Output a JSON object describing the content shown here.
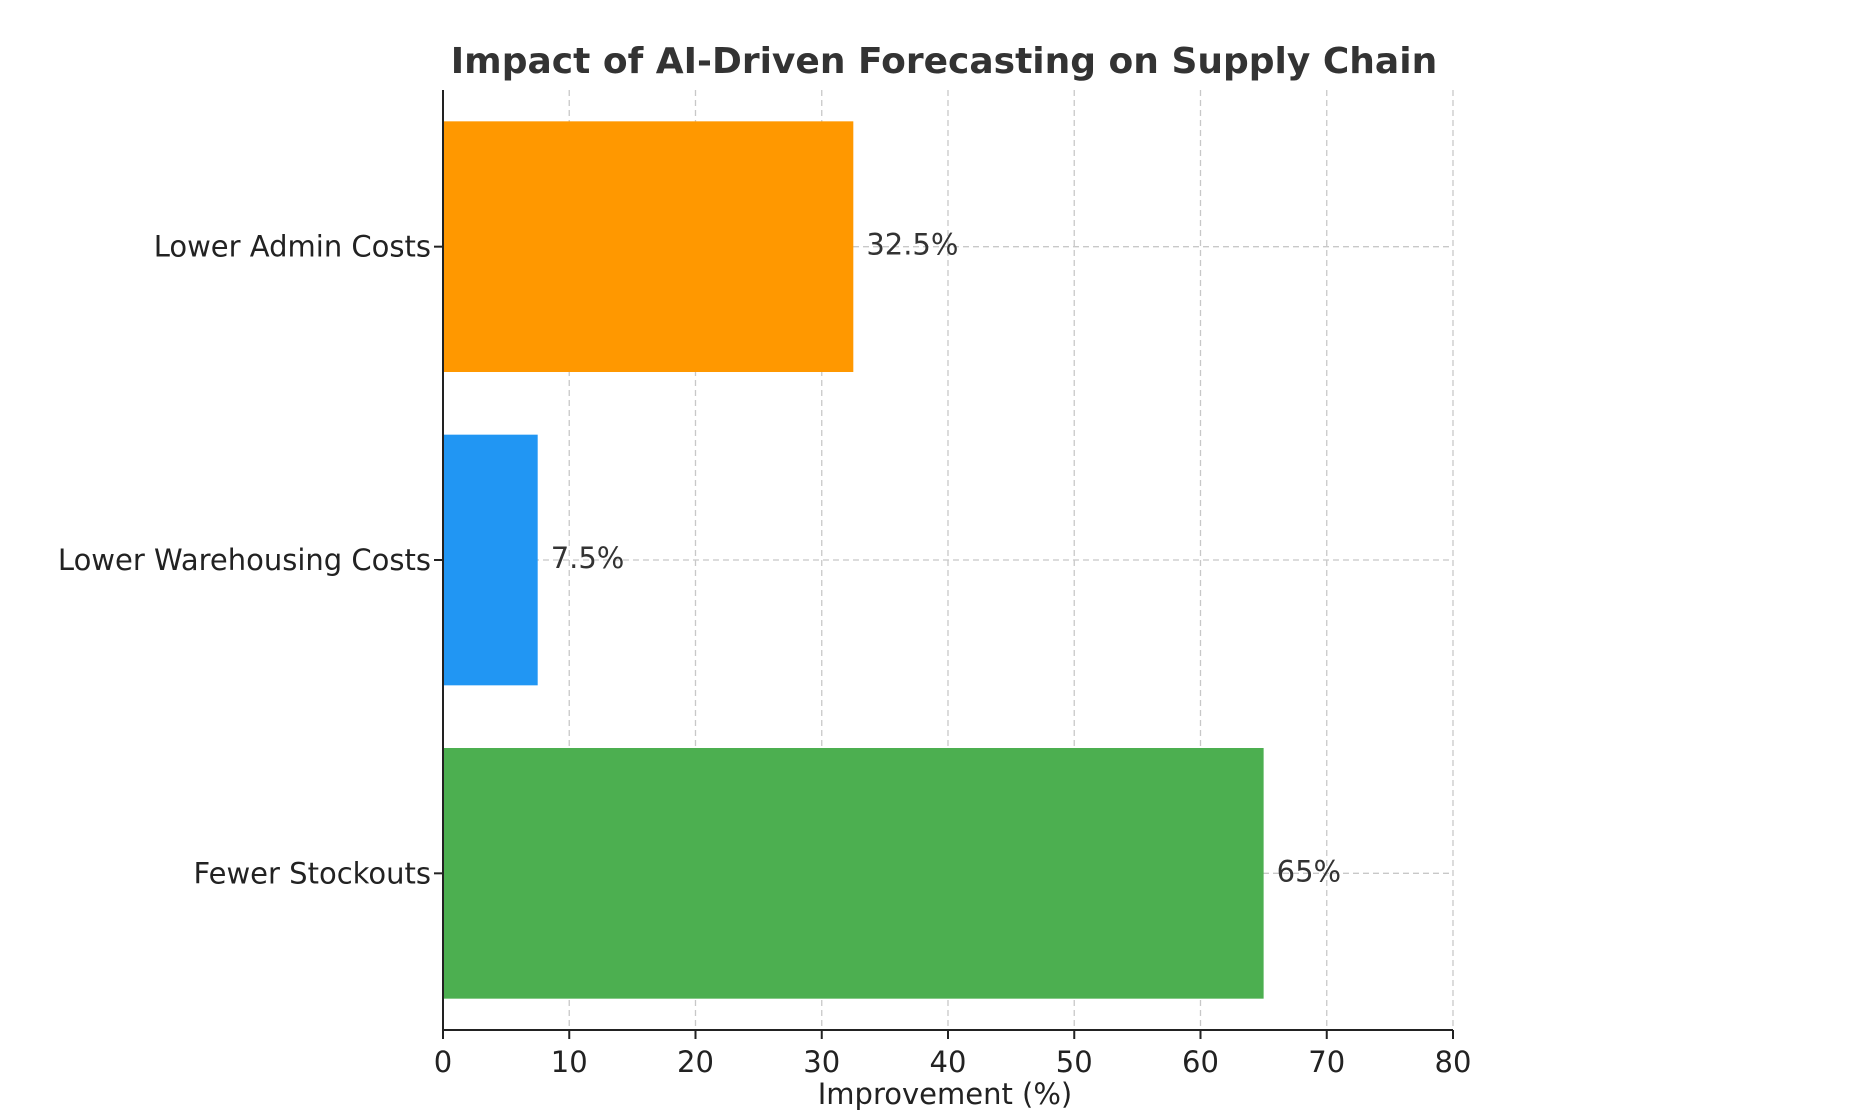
{
  "chart_data": {
    "type": "bar",
    "orientation": "horizontal",
    "title": "Impact of AI-Driven Forecasting on Supply Chain",
    "xlabel": "Improvement (%)",
    "ylabel": "",
    "xlim": [
      0,
      80
    ],
    "xticks": [
      "0",
      "10",
      "20",
      "30",
      "40",
      "50",
      "60",
      "70",
      "80"
    ],
    "categories": [
      "Fewer Stockouts",
      "Lower Warehousing Costs",
      "Lower Admin Costs"
    ],
    "values": [
      65,
      7.5,
      32.5
    ],
    "data_labels": [
      "65%",
      "7.5%",
      "32.5%"
    ],
    "colors": [
      "#4caf50",
      "#2196f3",
      "#ff9800"
    ],
    "grid": true,
    "legend": "none"
  }
}
